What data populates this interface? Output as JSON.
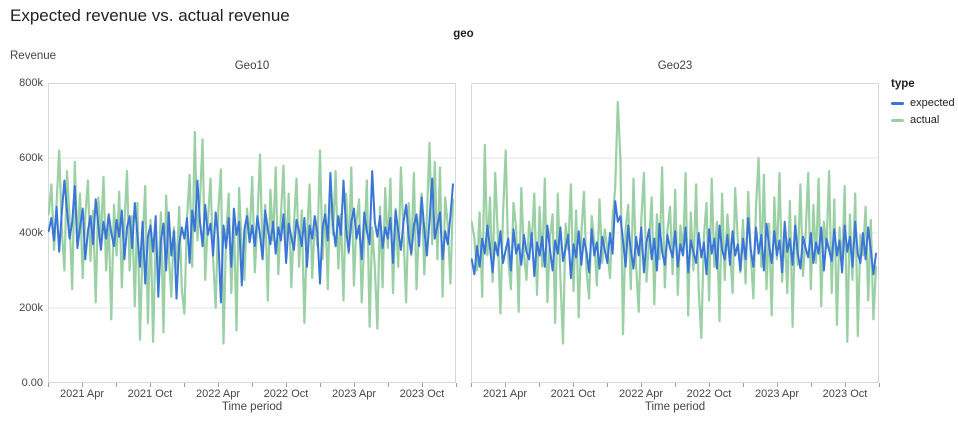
{
  "page": {
    "title": "Expected revenue vs. actual revenue"
  },
  "legend": {
    "title": "type",
    "items": [
      {
        "label": "expected"
      },
      {
        "label": "actual"
      }
    ]
  },
  "chart_data": {
    "type": "line",
    "title": "Expected revenue vs. actual revenue",
    "facet_field_title": "geo",
    "ylabel": "Revenue",
    "xlabel": "Time period",
    "grid": "horizontal-only",
    "legend_position": "right",
    "y_domain_thousands": [
      0,
      800
    ],
    "y_ticks": [
      {
        "value": 0,
        "label": "0.00"
      },
      {
        "value": 200,
        "label": "200k"
      },
      {
        "value": 400,
        "label": "400k"
      },
      {
        "value": 600,
        "label": "600k"
      },
      {
        "value": 800,
        "label": "800k"
      }
    ],
    "x_domain": [
      "2021-01-01",
      "2024-01-01"
    ],
    "x_start_offset_days": 2,
    "x_step_days": 7,
    "x_total_days": 1095,
    "x_ticks": [
      {
        "month_offset": 0,
        "label": ""
      },
      {
        "month_offset": 3,
        "label": "2021 Apr"
      },
      {
        "month_offset": 6,
        "label": ""
      },
      {
        "month_offset": 9,
        "label": "2021 Oct"
      },
      {
        "month_offset": 12,
        "label": ""
      },
      {
        "month_offset": 15,
        "label": "2022 Apr"
      },
      {
        "month_offset": 18,
        "label": ""
      },
      {
        "month_offset": 21,
        "label": "2022 Oct"
      },
      {
        "month_offset": 24,
        "label": ""
      },
      {
        "month_offset": 27,
        "label": "2023 Apr"
      },
      {
        "month_offset": 30,
        "label": ""
      },
      {
        "month_offset": 33,
        "label": "2023 Oct"
      },
      {
        "month_offset": 36,
        "label": ""
      }
    ],
    "series_colors": {
      "expected": "#3a76d8",
      "actual": "#9bd0a5"
    },
    "facets": [
      {
        "title": "Geo10",
        "series": [
          {
            "name": "expected",
            "values_thousands": [
              405,
              440,
              380,
              470,
              350,
              455,
              540,
              460,
              385,
              430,
              525,
              360,
              415,
              465,
              330,
              405,
              445,
              370,
              490,
              420,
              355,
              430,
              385,
              450,
              400,
              365,
              435,
              390,
              460,
              330,
              415,
              445,
              360,
              480,
              395,
              310,
              430,
              265,
              390,
              420,
              350,
              445,
              230,
              380,
              425,
              300,
              455,
              340,
              405,
              225,
              370,
              415,
              385,
              440,
              320,
              460,
              405,
              540,
              430,
              365,
              475,
              395,
              425,
              340,
              455,
              385,
              215,
              420,
              360,
              440,
              310,
              465,
              395,
              430,
              260,
              410,
              445,
              375,
              420,
              365,
              445,
              395,
              330,
              460,
              410,
              370,
              430,
              345,
              415,
              380,
              450,
              320,
              425,
              390,
              355,
              435,
              405,
              365,
              440,
              310,
              420,
              385,
              445,
              400,
              265,
              415,
              450,
              380,
              560,
              420,
              365,
              445,
              395,
              540,
              410,
              350,
              430,
              465,
              385,
              420,
              330,
              455,
              405,
              370,
              565,
              430,
              390,
              445,
              360,
              415,
              385,
              440,
              320,
              460,
              405,
              355,
              430,
              475,
              390,
              345,
              420,
              450,
              365,
              495,
              410,
              340,
              435,
              545,
              385,
              420,
              455,
              330,
              405,
              370,
              445,
              530
            ]
          },
          {
            "name": "actual",
            "values_thousands": [
              450,
              530,
              355,
              480,
              620,
              410,
              300,
              565,
              435,
              250,
              590,
              370,
              505,
              280,
              445,
              540,
              325,
              460,
              215,
              495,
              385,
              550,
              300,
              430,
              170,
              475,
              340,
              510,
              255,
              420,
              565,
              300,
              445,
              205,
              480,
              115,
              375,
              525,
              160,
              435,
              110,
              390,
              280,
              455,
              135,
              500,
              345,
              230,
              415,
              305,
              470,
              250,
              185,
              440,
              555,
              310,
              670,
              380,
              490,
              650,
              275,
              430,
              545,
              330,
              200,
              460,
              570,
              105,
              395,
              505,
              240,
              445,
              140,
              520,
              350,
              275,
              465,
              385,
              550,
              295,
              430,
              610,
              340,
              475,
              220,
              515,
              380,
              575,
              290,
              445,
              580,
              335,
              505,
              255,
              420,
              545,
              310,
              460,
              160,
              395,
              530,
              280,
              435,
              365,
              620,
              330,
              475,
              250,
              540,
              395,
              565,
              305,
              450,
              220,
              505,
              345,
              575,
              260,
              430,
              490,
              215,
              385,
              540,
              150,
              415,
              310,
              145,
              470,
              255,
              520,
              360,
              545,
              240,
              465,
              310,
              575,
              395,
              215,
              480,
              340,
              560,
              250,
              425,
              505,
              290,
              445,
              640,
              370,
              590,
              330,
              575,
              230,
              495,
              420,
              265,
              490
            ]
          }
        ]
      },
      {
        "title": "Geo23",
        "series": [
          {
            "name": "expected",
            "values_thousands": [
              330,
              290,
              365,
              310,
              385,
              345,
              420,
              360,
              295,
              375,
              340,
              405,
              320,
              355,
              385,
              300,
              410,
              345,
              370,
              315,
              395,
              350,
              330,
              400,
              285,
              375,
              340,
              390,
              310,
              420,
              355,
              300,
              380,
              345,
              415,
              325,
              360,
              395,
              280,
              370,
              335,
              405,
              315,
              385,
              350,
              295,
              410,
              340,
              375,
              305,
              390,
              355,
              320,
              400,
              345,
              485,
              430,
              445,
              380,
              310,
              420,
              355,
              305,
              390,
              340,
              415,
              295,
              375,
              410,
              330,
              385,
              300,
              425,
              350,
              315,
              395,
              360,
              335,
              405,
              310,
              370,
              340,
              415,
              295,
              380,
              350,
              320,
              400,
              335,
              375,
              290,
              410,
              345,
              385,
              305,
              420,
              355,
              330,
              395,
              315,
              405,
              340,
              370,
              300,
              385,
              330,
              440,
              355,
              310,
              415,
              345,
              395,
              300,
              425,
              365,
              320,
              405,
              340,
              380,
              295,
              430,
              350,
              385,
              315,
              420,
              345,
              305,
              390,
              360,
              335,
              400,
              320,
              375,
              345,
              415,
              300,
              385,
              355,
              325,
              410,
              340,
              380,
              295,
              420,
              350,
              390,
              310,
              430,
              345,
              320,
              400,
              330,
              415,
              355,
              290,
              345
            ]
          },
          {
            "name": "actual",
            "values_thousands": [
              430,
              385,
              300,
              455,
              230,
              635,
              340,
              495,
              270,
              560,
              395,
              185,
              450,
              620,
              330,
              250,
              480,
              415,
              190,
              520,
              345,
              275,
              430,
              365,
              505,
              235,
              470,
              310,
              545,
              215,
              390,
              450,
              160,
              505,
              280,
              105,
              425,
              355,
              530,
              245,
              460,
              175,
              395,
              510,
              300,
              225,
              445,
              375,
              260,
              490,
              320,
              410,
              355,
              280,
              440,
              520,
              750,
              600,
              130,
              410,
              475,
              250,
              545,
              315,
              190,
              435,
              560,
              270,
              380,
              495,
              210,
              450,
              330,
              575,
              255,
              405,
              470,
              290,
              515,
              235,
              420,
              345,
              560,
              180,
              455,
              300,
              530,
              250,
              120,
              390,
              480,
              220,
              545,
              310,
              430,
              165,
              505,
              275,
              450,
              355,
              240,
              520,
              380,
              295,
              435,
              265,
              510,
              340,
              225,
              470,
              600,
              310,
              555,
              250,
              425,
              180,
              495,
              330,
              560,
              270,
              410,
              240,
              485,
              150,
              445,
              315,
              530,
              285,
              395,
              560,
              250,
              475,
              320,
              545,
              205,
              430,
              360,
              565,
              240,
              490,
              155,
              415,
              310,
              525,
              110,
              450,
              275,
              505,
              125,
              395,
              340,
              470,
              220,
              435,
              170,
              310
            ]
          }
        ]
      }
    ]
  }
}
